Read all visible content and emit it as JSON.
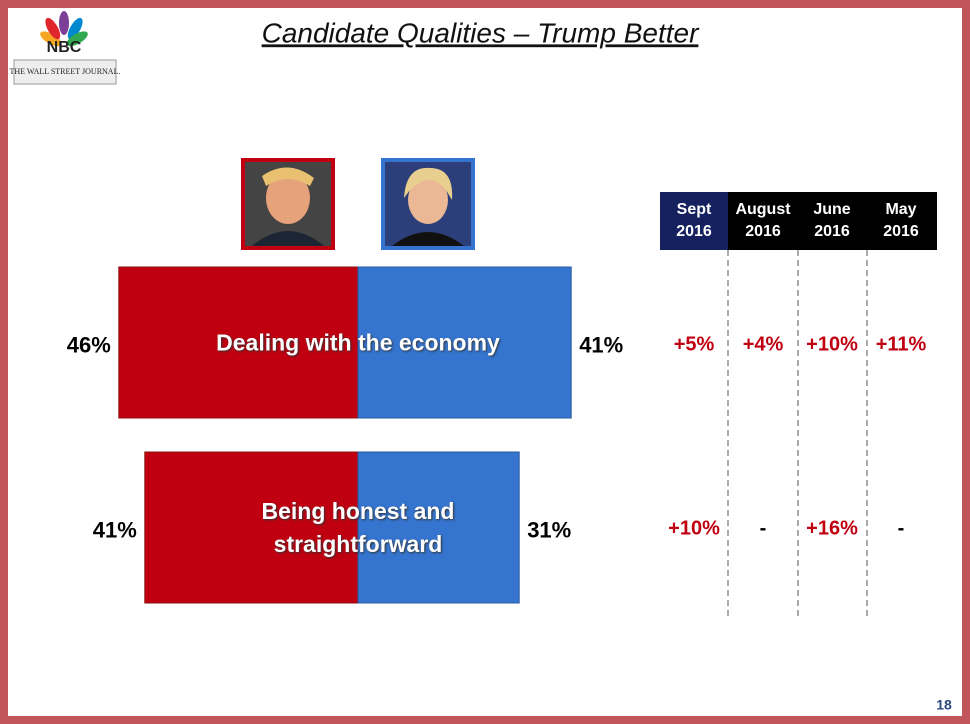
{
  "chart_data": {
    "type": "butterfly",
    "title": "Candidate Qualities – Trump Better",
    "categories": [
      "Dealing with the economy",
      "Being honest and straightforward"
    ],
    "series": [
      {
        "color": "#c00010",
        "values": [
          46,
          41
        ],
        "value_labels": [
          "46%",
          "41%"
        ]
      },
      {
        "color": "#3575cf",
        "values": [
          41,
          31
        ],
        "value_labels": [
          "41%",
          "31%"
        ]
      }
    ]
  },
  "logo": {
    "network": "NBC",
    "paper": "THE WALL STREET JOURNAL."
  },
  "table": {
    "header": [
      "Sept 2016",
      "August 2016",
      "June 2016",
      "May 2016"
    ],
    "rows": [
      [
        "+5%",
        "+4%",
        "+10%",
        "+11%"
      ],
      [
        "+10%",
        "-",
        "+16%",
        "-"
      ]
    ]
  },
  "page_number": "18"
}
